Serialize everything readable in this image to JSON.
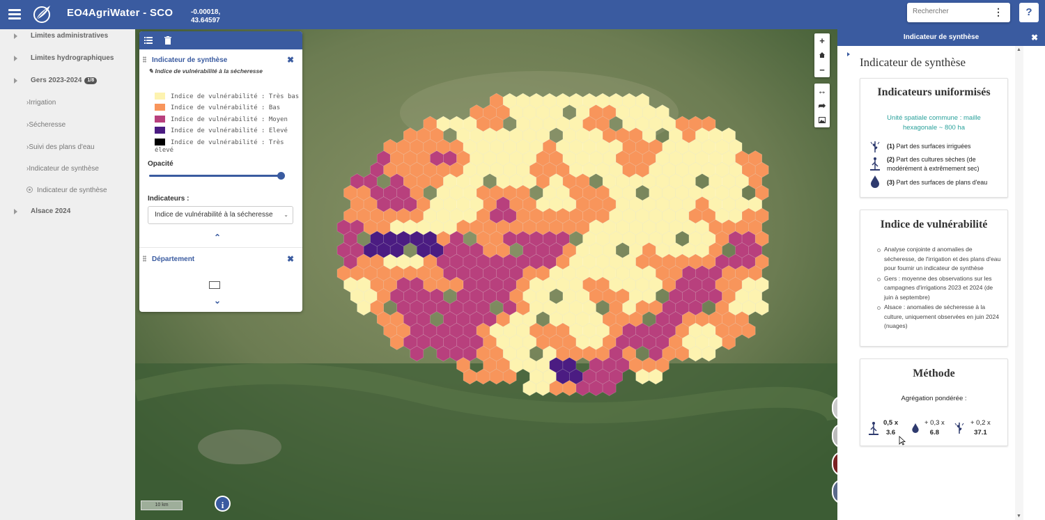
{
  "header": {
    "app_title": "EO4AgriWater - SCO",
    "coord_x": "-0.00018,",
    "coord_y": "43.64597",
    "search_placeholder": "Rechercher",
    "help_label": "?"
  },
  "sidebar": {
    "items": [
      {
        "label": "Limites administratives"
      },
      {
        "label": "Limites hydrographiques"
      },
      {
        "label": "Gers 2023-2024",
        "badge": "1/8"
      },
      {
        "label": "Irrigation"
      },
      {
        "label": "Sécheresse"
      },
      {
        "label": "Suivi des plans d'eau"
      },
      {
        "label": "Indicateur de synthèse"
      },
      {
        "label": "Indicateur de synthèse"
      },
      {
        "label": "Alsace 2024"
      }
    ]
  },
  "map": {
    "controls": {
      "zoom_in": "+",
      "zoom_out": "−"
    },
    "scale_label": "10 km",
    "info_label": "i",
    "hex_colors": {
      "tres_bas": "#fdf3b0",
      "bas": "#f8955b",
      "moyen": "#b8407d",
      "eleve": "#4b1c82"
    }
  },
  "legend_panel": {
    "layer_title": "Indicateur de synthèse",
    "layer_subtitle": "Indice de vulnérabilité à la sécheresse",
    "legend": [
      {
        "label": "Indice de vulnérabilité : Très bas",
        "color": "#fdf3b0"
      },
      {
        "label": "Indice de vulnérabilité : Bas",
        "color": "#f8955b"
      },
      {
        "label": "Indice de vulnérabilité : Moyen",
        "color": "#b8407d"
      },
      {
        "label": "Indice de vulnérabilité : Elevé",
        "color": "#4b1c82"
      },
      {
        "label": "Indice de vulnérabilité : Très élevé",
        "color": "#000000"
      }
    ],
    "opacity_label": "Opacité",
    "opacity_value": 1.0,
    "indicators_label": "Indicateurs :",
    "indicators_selected": "Indice de vulnérabilité à la sécheresse",
    "second_layer_title": "Département"
  },
  "right_panel": {
    "header_title": "Indicateur de synthèse",
    "heading": "Indicateur de synthèse",
    "card1": {
      "title": "Indicateurs uniformisés",
      "subtitle_line1": "Unité spatiale commune : maille",
      "subtitle_line2": "hexagonale ~ 800 ha",
      "items": [
        {
          "num": "(1)",
          "text": "Part des surfaces irriguées"
        },
        {
          "num": "(2)",
          "text": "Part des cultures sèches (de",
          "text2": "modérément à extrêmement sec)"
        },
        {
          "num": "(3)",
          "text": "Part des surfaces de plans d'eau"
        }
      ]
    },
    "card2": {
      "title": "Indice de vulnérabilité",
      "bullets": [
        "Analyse conjointe d anomalies de sécheresse, de l'irrigation et des plans d'eau pour fournir un indicateur de synthèse",
        "Gers : moyenne des observations sur les campagnes d'irrigations 2023 et 2024 (de juin à septembre)",
        "Alsace : anomalies de sécheresse à la culture, uniquement observées en juin 2024 (nuages)"
      ]
    },
    "card3": {
      "title": "Méthode",
      "subtitle": "Agrégation pondérée :",
      "w1": "0,5 x",
      "v1": "3.6",
      "w2": "+ 0,3 x",
      "v2": "6.8",
      "w3": "+ 0,2 x",
      "v3": "37.1"
    }
  }
}
